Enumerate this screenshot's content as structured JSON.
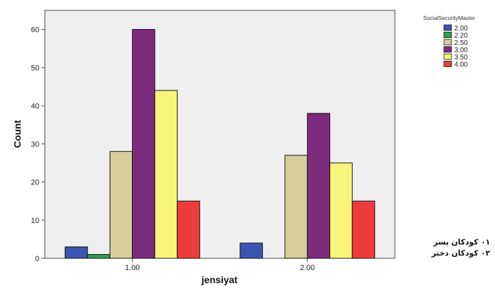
{
  "chart_data": {
    "type": "bar",
    "title": "",
    "xlabel": "jensiyat",
    "ylabel": "Count",
    "categories": [
      "1.00",
      "2.00"
    ],
    "ylim": [
      0,
      65
    ],
    "yticks": [
      0,
      10,
      20,
      30,
      40,
      50,
      60
    ],
    "grid": false,
    "legend_title": "SocialSecurityMaster",
    "legend_position": "top-right",
    "series": [
      {
        "name": "2.00",
        "color": "#3b55b0",
        "values": [
          3,
          4
        ]
      },
      {
        "name": "2.20",
        "color": "#2aa04a",
        "values": [
          1,
          0
        ]
      },
      {
        "name": "2.50",
        "color": "#d6cf9c",
        "values": [
          28,
          27
        ]
      },
      {
        "name": "3.00",
        "color": "#7d2a7d",
        "values": [
          60,
          38
        ]
      },
      {
        "name": "3.50",
        "color": "#f8f67a",
        "values": [
          44,
          25
        ]
      },
      {
        "name": "4.00",
        "color": "#ee3b3b",
        "values": [
          15,
          15
        ]
      }
    ]
  },
  "annotations": {
    "line1": "۰۱ کودکان پسر",
    "line2": "۰۲ کودکان دختر"
  }
}
